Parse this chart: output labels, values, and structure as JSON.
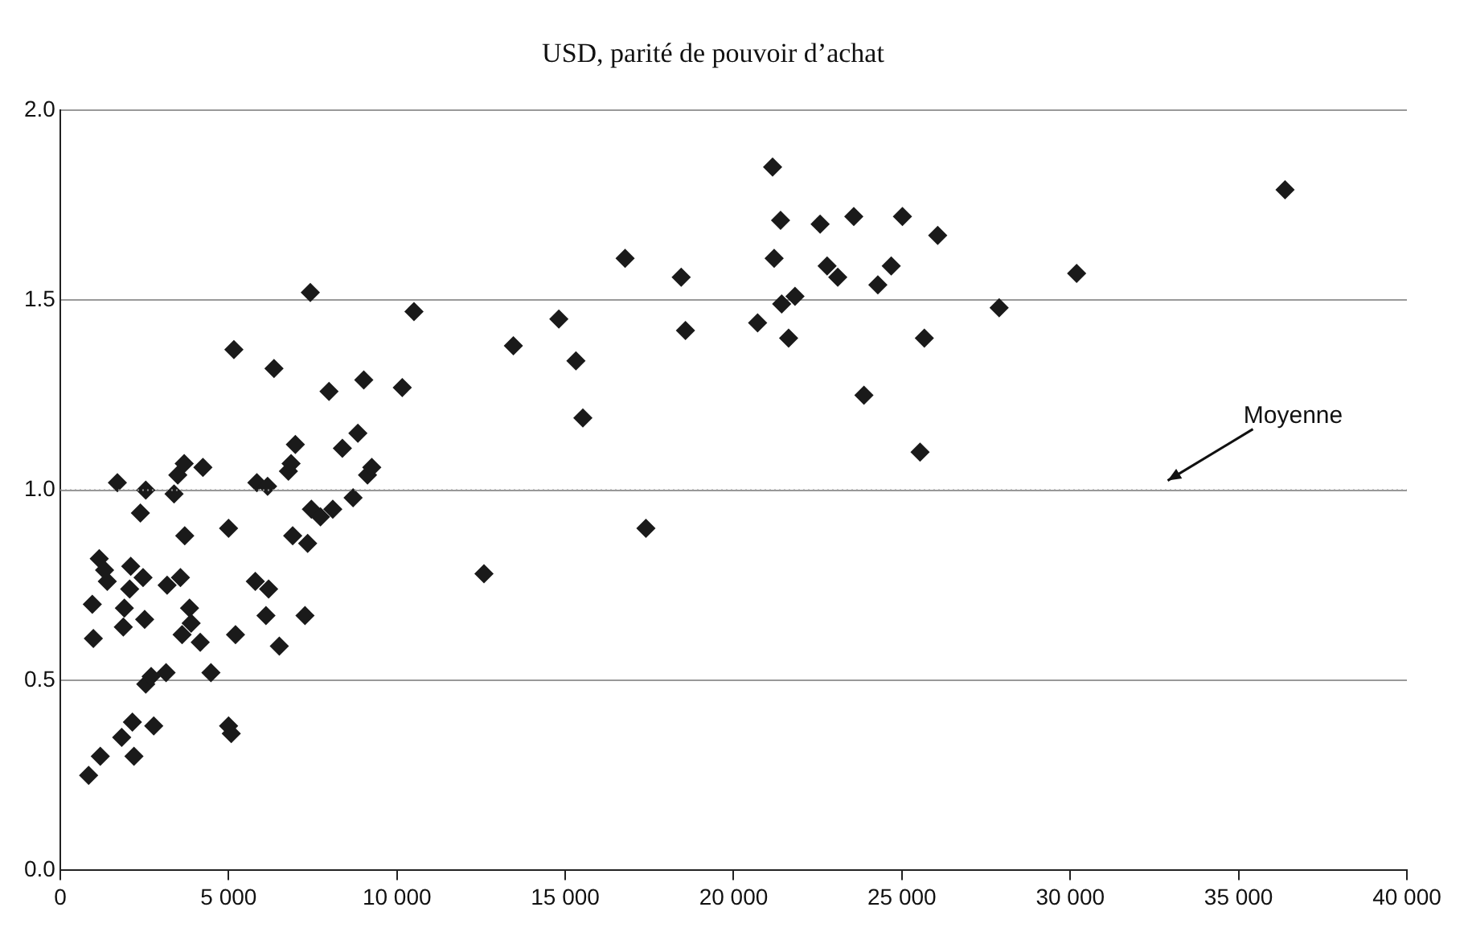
{
  "chart_data": {
    "type": "scatter",
    "title": "USD, parité de pouvoir d’achat",
    "x": [
      843,
      1190,
      1825,
      2190,
      2143,
      2778,
      2540,
      2700,
      3143,
      4476,
      5000,
      5080,
      5206,
      6508,
      4159,
      984,
      952,
      1905,
      1873,
      2508,
      2063,
      2460,
      1397,
      1159,
      1317,
      2095,
      3175,
      3571,
      3841,
      3889,
      3619,
      3698,
      5000,
      5794,
      6190,
      6111,
      7270,
      6905,
      7349,
      7460,
      7730,
      8095,
      8698,
      9127,
      9254,
      1698,
      2540,
      2381,
      3381,
      3492,
      3683,
      4238,
      5841,
      6159,
      6778,
      6857,
      5159,
      6349,
      7429,
      7984,
      9016,
      10159,
      10508,
      8841,
      8381,
      6984,
      21159,
      21397,
      22571,
      23571,
      25016,
      26063,
      16778,
      21206,
      22778,
      23095,
      24683,
      24286,
      18444,
      30190,
      27889,
      21825,
      21429,
      14810,
      13460,
      15317,
      18571,
      20714,
      21635,
      25667,
      23873,
      15524,
      25540,
      17397,
      12587,
      36381
    ],
    "series": [
      {
        "color": "#1a1a1a",
        "values": [
          0.25,
          0.3,
          0.35,
          0.3,
          0.39,
          0.38,
          0.49,
          0.51,
          0.52,
          0.52,
          0.38,
          0.36,
          0.62,
          0.59,
          0.6,
          0.61,
          0.7,
          0.69,
          0.64,
          0.66,
          0.74,
          0.77,
          0.76,
          0.82,
          0.79,
          0.8,
          0.75,
          0.77,
          0.69,
          0.65,
          0.62,
          0.88,
          0.9,
          0.76,
          0.74,
          0.67,
          0.67,
          0.88,
          0.86,
          0.95,
          0.93,
          0.95,
          0.98,
          1.04,
          1.06,
          1.02,
          1.0,
          0.94,
          0.99,
          1.04,
          1.07,
          1.06,
          1.02,
          1.01,
          1.05,
          1.07,
          1.37,
          1.32,
          1.52,
          1.26,
          1.29,
          1.27,
          1.47,
          1.15,
          1.11,
          1.12,
          1.85,
          1.71,
          1.7,
          1.72,
          1.72,
          1.67,
          1.61,
          1.61,
          1.59,
          1.56,
          1.59,
          1.54,
          1.56,
          1.57,
          1.48,
          1.51,
          1.49,
          1.45,
          1.38,
          1.34,
          1.42,
          1.44,
          1.4,
          1.4,
          1.25,
          1.19,
          1.1,
          0.9,
          0.78,
          1.79
        ]
      }
    ],
    "xlim": [
      0,
      40000
    ],
    "ylim": [
      0,
      2
    ],
    "xticks": [
      {
        "value": 0,
        "label": "0"
      },
      {
        "value": 5000,
        "label": "5 000"
      },
      {
        "value": 10000,
        "label": "10 000"
      },
      {
        "value": 15000,
        "label": "15 000"
      },
      {
        "value": 20000,
        "label": "20 000"
      },
      {
        "value": 25000,
        "label": "25 000"
      },
      {
        "value": 30000,
        "label": "30 000"
      },
      {
        "value": 35000,
        "label": "35 000"
      },
      {
        "value": 40000,
        "label": "40 000"
      }
    ],
    "yticks": [
      {
        "value": 0,
        "label": "0.0"
      },
      {
        "value": 0.5,
        "label": "0.5"
      },
      {
        "value": 1,
        "label": "1.0"
      },
      {
        "value": 1.5,
        "label": "1.5"
      },
      {
        "value": 2,
        "label": "2.0"
      }
    ],
    "grid": "y",
    "marker": "diamond",
    "legend": false,
    "ref_lines": [
      {
        "axis": "y",
        "value": 1,
        "label": "Moyenne",
        "color": "#999999",
        "line_style": "dotted"
      }
    ]
  }
}
